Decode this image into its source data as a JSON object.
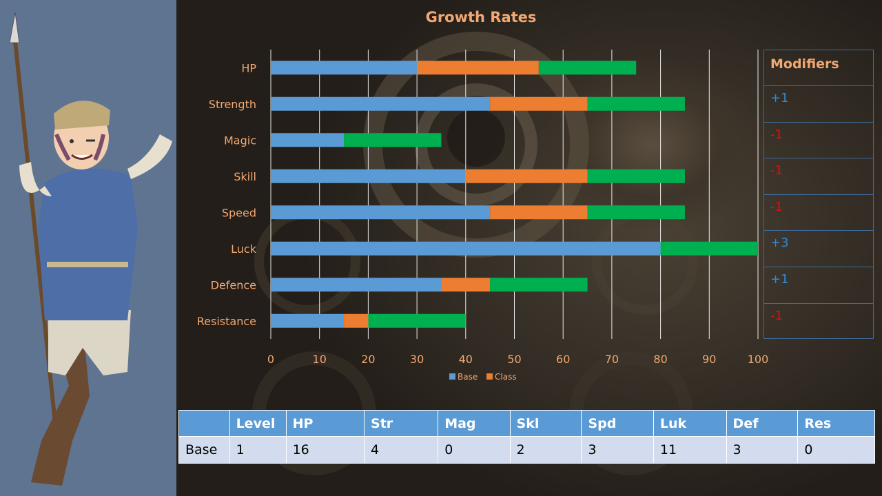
{
  "chart": {
    "title": "Growth Rates",
    "legend": [
      "Base",
      "Class"
    ]
  },
  "colors": {
    "base": "#5b9bd5",
    "class": "#ed7d31",
    "third": "#00b050",
    "positive_modifier": "#2e8bd6",
    "negative_modifier": "#e01010"
  },
  "chart_data": {
    "type": "bar",
    "orientation": "horizontal",
    "stacked": true,
    "title": "Growth Rates",
    "categories": [
      "HP",
      "Strength",
      "Magic",
      "Skill",
      "Speed",
      "Luck",
      "Defence",
      "Resistance"
    ],
    "series": [
      {
        "name": "Base",
        "color": "#5b9bd5",
        "values": [
          30,
          45,
          15,
          40,
          45,
          80,
          35,
          15
        ]
      },
      {
        "name": "Class",
        "color": "#ed7d31",
        "values": [
          25,
          20,
          0,
          25,
          20,
          0,
          10,
          5
        ]
      },
      {
        "color": "#00b050",
        "values": [
          20,
          20,
          20,
          20,
          20,
          20,
          20,
          20
        ]
      }
    ],
    "x_ticks": [
      0,
      10,
      20,
      30,
      40,
      50,
      60,
      70,
      80,
      90,
      100
    ],
    "xlim": [
      0,
      100
    ],
    "grid": true,
    "legend_position": "bottom"
  },
  "modifiers": {
    "header": "Modifiers",
    "values": [
      "+1",
      "-1",
      "-1",
      "-1",
      "+3",
      "+1",
      "-1"
    ]
  },
  "stats_table": {
    "headers": [
      "",
      "Level",
      "HP",
      "Str",
      "Mag",
      "Skl",
      "Spd",
      "Luk",
      "Def",
      "Res"
    ],
    "row": [
      "Base",
      "1",
      "16",
      "4",
      "0",
      "2",
      "3",
      "11",
      "3",
      "0"
    ]
  }
}
